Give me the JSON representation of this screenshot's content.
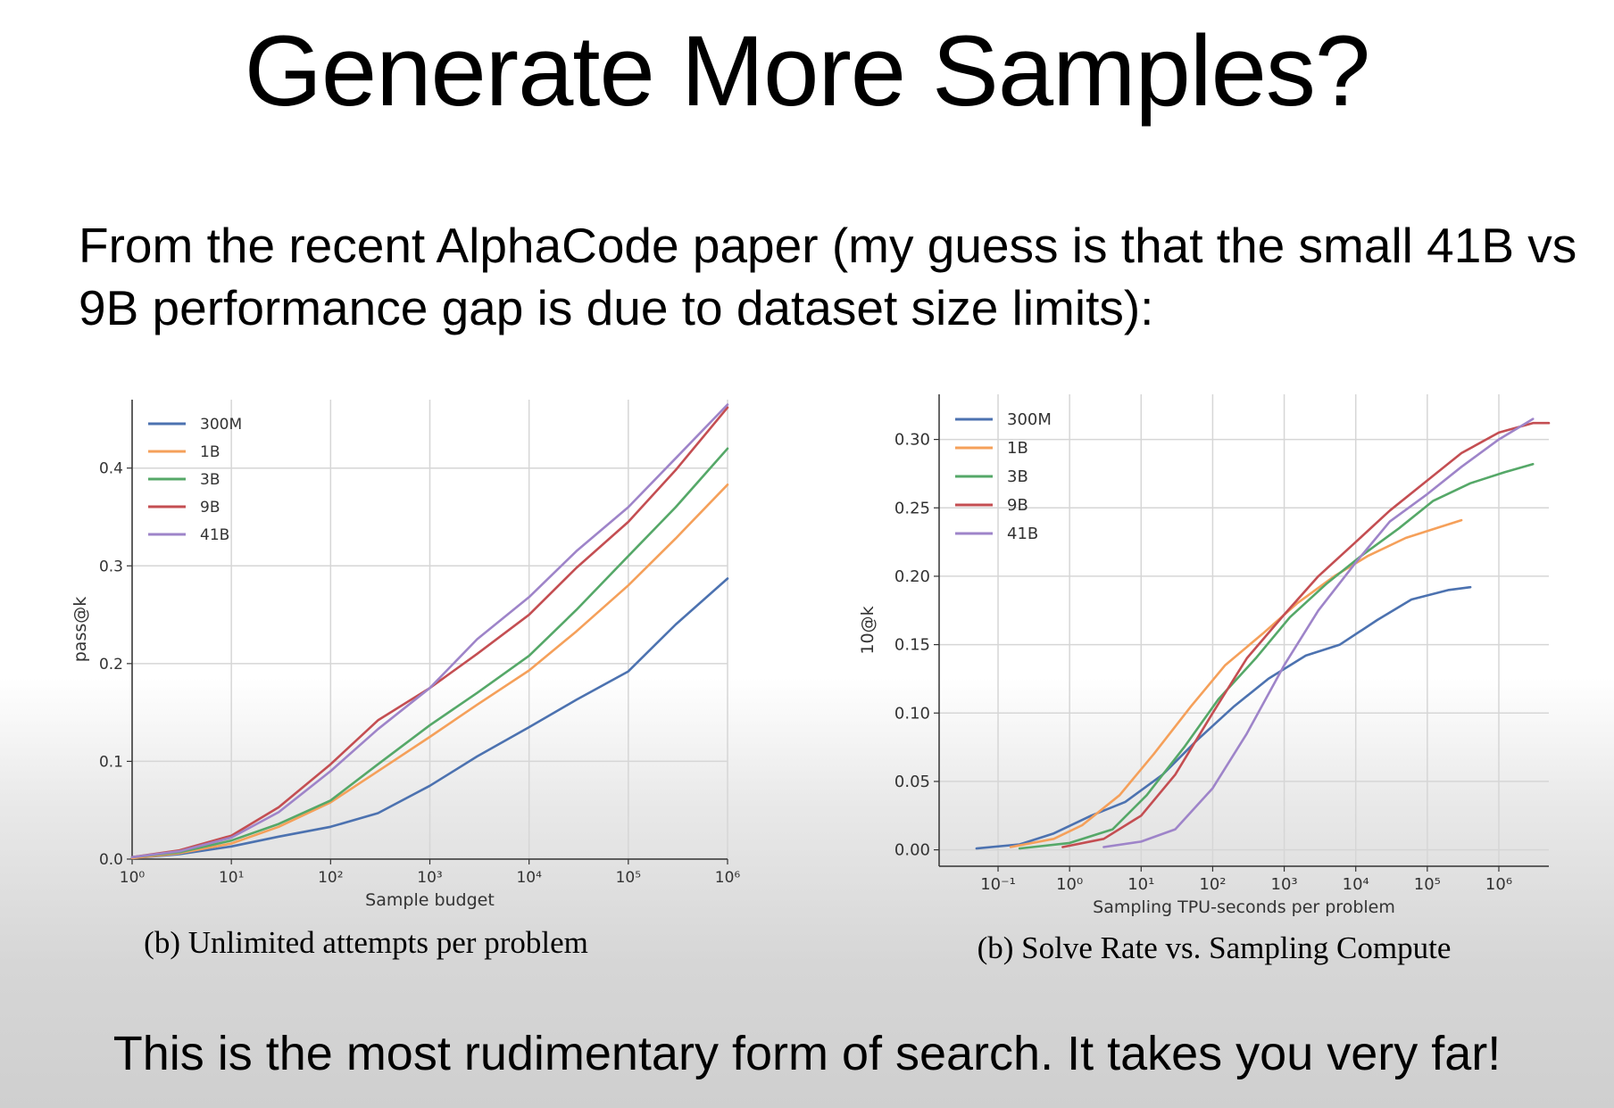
{
  "slide": {
    "title": "Generate More Samples?",
    "intro": "From the recent AlphaCode paper (my guess is that the small 41B vs 9B performance gap is due to dataset size limits):",
    "footer": "This is the most rudimentary form of search.  It takes you very far!"
  },
  "chart_data": [
    {
      "type": "line",
      "caption": "(b) Unlimited attempts per problem",
      "xlabel": "Sample budget",
      "ylabel": "pass@k",
      "x_scale": "log",
      "xlim": [
        1,
        1000000
      ],
      "ylim": [
        0,
        0.47
      ],
      "x_ticks": [
        {
          "v": 1,
          "label": "10⁰"
        },
        {
          "v": 10,
          "label": "10¹"
        },
        {
          "v": 100,
          "label": "10²"
        },
        {
          "v": 1000,
          "label": "10³"
        },
        {
          "v": 10000,
          "label": "10⁴"
        },
        {
          "v": 100000,
          "label": "10⁵"
        },
        {
          "v": 1000000,
          "label": "10⁶"
        }
      ],
      "y_ticks": [
        {
          "v": 0,
          "label": "0.0"
        },
        {
          "v": 0.1,
          "label": "0.1"
        },
        {
          "v": 0.2,
          "label": "0.2"
        },
        {
          "v": 0.3,
          "label": "0.3"
        },
        {
          "v": 0.4,
          "label": "0.4"
        }
      ],
      "grid": true,
      "legend_position": "top-left",
      "series": [
        {
          "name": "300M",
          "color": "#4c72b0",
          "points": [
            [
              1,
              0.001
            ],
            [
              3,
              0.005
            ],
            [
              10,
              0.013
            ],
            [
              30,
              0.023
            ],
            [
              100,
              0.033
            ],
            [
              300,
              0.047
            ],
            [
              1000,
              0.075
            ],
            [
              3000,
              0.105
            ],
            [
              10000,
              0.135
            ],
            [
              30000,
              0.163
            ],
            [
              100000,
              0.192
            ],
            [
              300000,
              0.24
            ],
            [
              1000000,
              0.287
            ]
          ]
        },
        {
          "name": "1B",
          "color": "#f5a05a",
          "points": [
            [
              1,
              0.001
            ],
            [
              3,
              0.006
            ],
            [
              10,
              0.016
            ],
            [
              30,
              0.033
            ],
            [
              100,
              0.058
            ],
            [
              300,
              0.09
            ],
            [
              1000,
              0.125
            ],
            [
              3000,
              0.158
            ],
            [
              10000,
              0.193
            ],
            [
              30000,
              0.233
            ],
            [
              100000,
              0.28
            ],
            [
              300000,
              0.328
            ],
            [
              1000000,
              0.383
            ]
          ]
        },
        {
          "name": "3B",
          "color": "#55a868",
          "points": [
            [
              1,
              0.002
            ],
            [
              3,
              0.007
            ],
            [
              10,
              0.019
            ],
            [
              30,
              0.036
            ],
            [
              100,
              0.06
            ],
            [
              300,
              0.097
            ],
            [
              1000,
              0.137
            ],
            [
              3000,
              0.17
            ],
            [
              10000,
              0.208
            ],
            [
              30000,
              0.255
            ],
            [
              100000,
              0.31
            ],
            [
              300000,
              0.36
            ],
            [
              1000000,
              0.42
            ]
          ]
        },
        {
          "name": "9B",
          "color": "#c44e52",
          "points": [
            [
              1,
              0.002
            ],
            [
              3,
              0.009
            ],
            [
              10,
              0.024
            ],
            [
              30,
              0.053
            ],
            [
              100,
              0.097
            ],
            [
              300,
              0.142
            ],
            [
              1000,
              0.175
            ],
            [
              3000,
              0.21
            ],
            [
              10000,
              0.25
            ],
            [
              30000,
              0.298
            ],
            [
              100000,
              0.345
            ],
            [
              300000,
              0.398
            ],
            [
              1000000,
              0.462
            ]
          ]
        },
        {
          "name": "41B",
          "color": "#9e84c9",
          "points": [
            [
              1,
              0.002
            ],
            [
              3,
              0.008
            ],
            [
              10,
              0.022
            ],
            [
              30,
              0.048
            ],
            [
              100,
              0.09
            ],
            [
              300,
              0.133
            ],
            [
              1000,
              0.175
            ],
            [
              3000,
              0.225
            ],
            [
              10000,
              0.268
            ],
            [
              30000,
              0.315
            ],
            [
              100000,
              0.36
            ],
            [
              300000,
              0.41
            ],
            [
              1000000,
              0.465
            ]
          ]
        }
      ]
    },
    {
      "type": "line",
      "caption": "(b) Solve Rate vs. Sampling Compute",
      "xlabel": "Sampling TPU-seconds per problem",
      "ylabel": "10@k",
      "x_scale": "log",
      "xlim": [
        0.015,
        5000000
      ],
      "ylim": [
        -0.012,
        0.333
      ],
      "x_ticks": [
        {
          "v": 0.1,
          "label": "10⁻¹"
        },
        {
          "v": 1,
          "label": "10⁰"
        },
        {
          "v": 10,
          "label": "10¹"
        },
        {
          "v": 100,
          "label": "10²"
        },
        {
          "v": 1000,
          "label": "10³"
        },
        {
          "v": 10000,
          "label": "10⁴"
        },
        {
          "v": 100000,
          "label": "10⁵"
        },
        {
          "v": 1000000,
          "label": "10⁶"
        }
      ],
      "y_ticks": [
        {
          "v": 0,
          "label": "0.00"
        },
        {
          "v": 0.05,
          "label": "0.05"
        },
        {
          "v": 0.1,
          "label": "0.10"
        },
        {
          "v": 0.15,
          "label": "0.15"
        },
        {
          "v": 0.2,
          "label": "0.20"
        },
        {
          "v": 0.25,
          "label": "0.25"
        },
        {
          "v": 0.3,
          "label": "0.30"
        }
      ],
      "grid": true,
      "legend_position": "top-left",
      "series": [
        {
          "name": "300M",
          "color": "#4c72b0",
          "points": [
            [
              0.05,
              0.001
            ],
            [
              0.2,
              0.004
            ],
            [
              0.6,
              0.012
            ],
            [
              2,
              0.025
            ],
            [
              6,
              0.035
            ],
            [
              20,
              0.055
            ],
            [
              60,
              0.08
            ],
            [
              200,
              0.105
            ],
            [
              600,
              0.125
            ],
            [
              2000,
              0.142
            ],
            [
              6000,
              0.15
            ],
            [
              20000,
              0.168
            ],
            [
              60000,
              0.183
            ],
            [
              200000,
              0.19
            ],
            [
              400000,
              0.192
            ]
          ]
        },
        {
          "name": "1B",
          "color": "#f5a05a",
          "points": [
            [
              0.15,
              0.002
            ],
            [
              0.6,
              0.008
            ],
            [
              1.5,
              0.018
            ],
            [
              5,
              0.04
            ],
            [
              15,
              0.07
            ],
            [
              50,
              0.105
            ],
            [
              150,
              0.135
            ],
            [
              500,
              0.158
            ],
            [
              1500,
              0.18
            ],
            [
              5000,
              0.2
            ],
            [
              15000,
              0.215
            ],
            [
              50000,
              0.228
            ],
            [
              150000,
              0.236
            ],
            [
              300000,
              0.241
            ]
          ]
        },
        {
          "name": "3B",
          "color": "#55a868",
          "points": [
            [
              0.2,
              0.001
            ],
            [
              1,
              0.005
            ],
            [
              4,
              0.015
            ],
            [
              12,
              0.04
            ],
            [
              40,
              0.075
            ],
            [
              120,
              0.11
            ],
            [
              400,
              0.14
            ],
            [
              1200,
              0.17
            ],
            [
              4000,
              0.195
            ],
            [
              12000,
              0.215
            ],
            [
              40000,
              0.235
            ],
            [
              120000,
              0.255
            ],
            [
              400000,
              0.268
            ],
            [
              1200000,
              0.276
            ],
            [
              3000000,
              0.282
            ]
          ]
        },
        {
          "name": "9B",
          "color": "#c44e52",
          "points": [
            [
              0.8,
              0.002
            ],
            [
              3,
              0.008
            ],
            [
              10,
              0.025
            ],
            [
              30,
              0.055
            ],
            [
              100,
              0.1
            ],
            [
              300,
              0.14
            ],
            [
              1000,
              0.172
            ],
            [
              3000,
              0.2
            ],
            [
              10000,
              0.225
            ],
            [
              30000,
              0.248
            ],
            [
              100000,
              0.27
            ],
            [
              300000,
              0.29
            ],
            [
              1000000,
              0.305
            ],
            [
              3000000,
              0.312
            ],
            [
              5000000,
              0.312
            ]
          ]
        },
        {
          "name": "41B",
          "color": "#9e84c9",
          "points": [
            [
              3,
              0.002
            ],
            [
              10,
              0.006
            ],
            [
              30,
              0.015
            ],
            [
              100,
              0.045
            ],
            [
              300,
              0.085
            ],
            [
              1000,
              0.135
            ],
            [
              3000,
              0.175
            ],
            [
              10000,
              0.21
            ],
            [
              30000,
              0.24
            ],
            [
              100000,
              0.26
            ],
            [
              300000,
              0.28
            ],
            [
              1000000,
              0.3
            ],
            [
              3000000,
              0.315
            ]
          ]
        }
      ]
    }
  ]
}
